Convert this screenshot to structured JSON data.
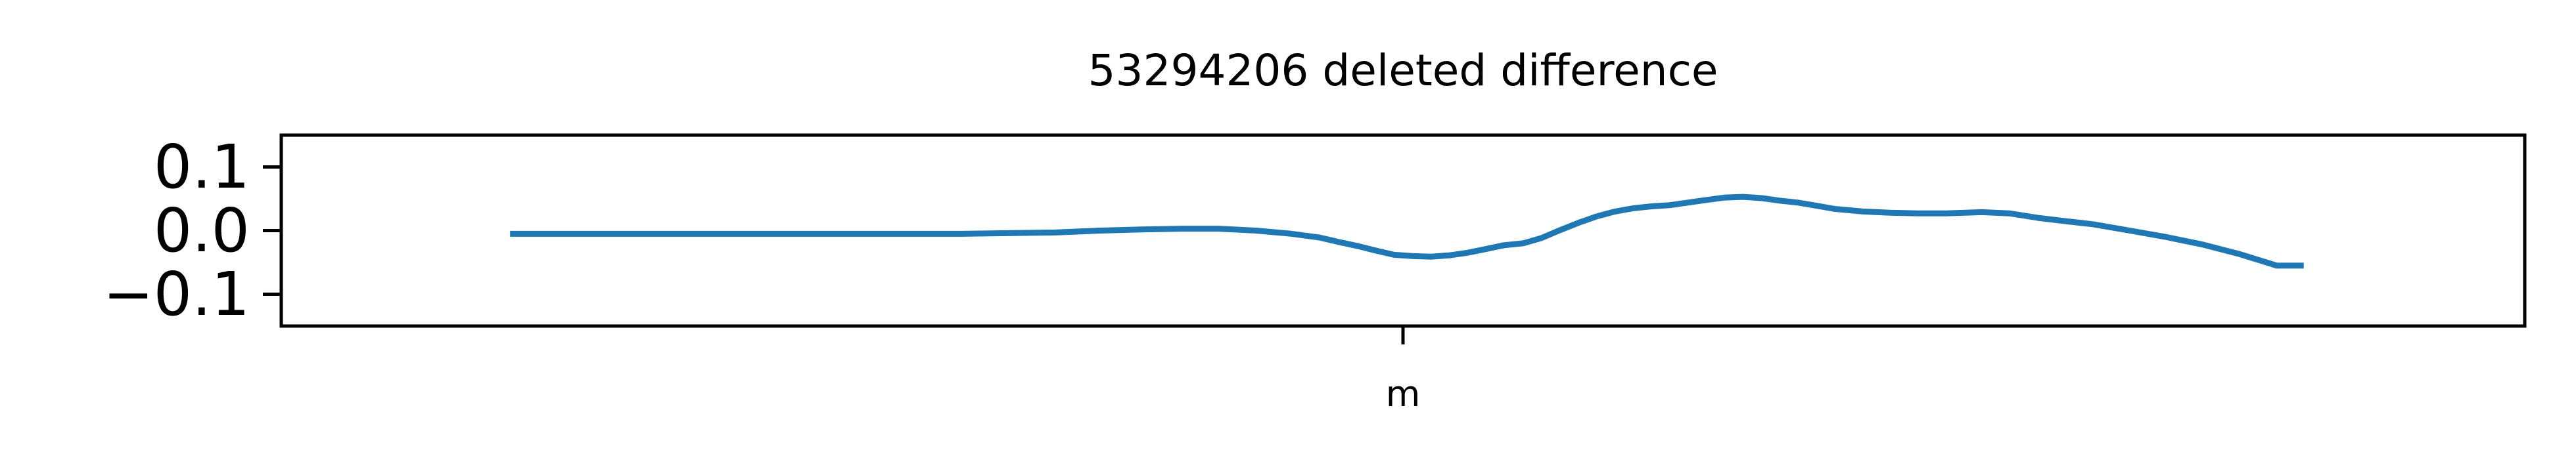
{
  "chart_data": {
    "type": "line",
    "title": "53294206 deleted difference",
    "xlabel": "",
    "ylabel": "",
    "x_ticks": [
      "m"
    ],
    "y_ticks": [
      0.1,
      0.0,
      -0.1
    ],
    "y_tick_labels": [
      "0.1",
      "0.0",
      "−0.1"
    ],
    "ylim": [
      -0.15,
      0.15
    ],
    "xlim": [
      -1.0,
      1.0
    ],
    "grid": false,
    "series": [
      {
        "color": "#1f77b4",
        "x": [
          -0.796,
          -0.59,
          -0.393,
          -0.31,
          -0.27,
          -0.23,
          -0.197,
          -0.164,
          -0.131,
          -0.099,
          -0.074,
          -0.057,
          -0.041,
          -0.025,
          -0.008,
          0.008,
          0.025,
          0.041,
          0.057,
          0.074,
          0.09,
          0.107,
          0.123,
          0.139,
          0.156,
          0.172,
          0.189,
          0.205,
          0.221,
          0.238,
          0.254,
          0.27,
          0.287,
          0.303,
          0.32,
          0.336,
          0.352,
          0.369,
          0.385,
          0.41,
          0.434,
          0.459,
          0.484,
          0.516,
          0.541,
          0.566,
          0.59,
          0.615,
          0.648,
          0.68,
          0.713,
          0.746,
          0.779,
          0.803
        ],
        "y": [
          -0.005,
          -0.005,
          -0.005,
          -0.003,
          0.0,
          0.002,
          0.003,
          0.003,
          0.0,
          -0.005,
          -0.011,
          -0.018,
          -0.024,
          -0.031,
          -0.038,
          -0.04,
          -0.041,
          -0.039,
          -0.035,
          -0.029,
          -0.023,
          -0.02,
          -0.012,
          0.0,
          0.012,
          0.022,
          0.03,
          0.035,
          0.038,
          0.04,
          0.044,
          0.048,
          0.052,
          0.053,
          0.051,
          0.047,
          0.044,
          0.039,
          0.034,
          0.03,
          0.028,
          0.027,
          0.027,
          0.029,
          0.027,
          0.02,
          0.015,
          0.01,
          0.0,
          -0.01,
          -0.022,
          -0.037,
          -0.055,
          -0.055
        ]
      }
    ]
  }
}
